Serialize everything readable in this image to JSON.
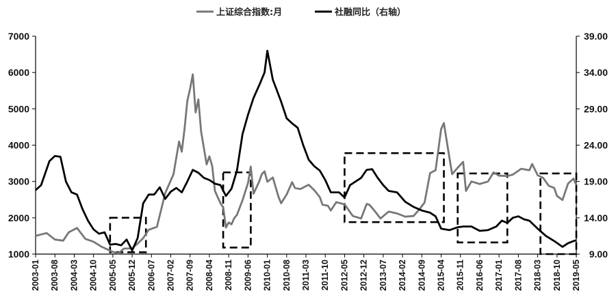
{
  "chart_data": {
    "type": "line",
    "title": "",
    "xlabel": "",
    "ylabel": "",
    "legend_position": "top-center",
    "grid": false,
    "left_axis": {
      "min": 1000,
      "max": 7000,
      "step": 1000,
      "ticks": [
        "1000",
        "2000",
        "3000",
        "4000",
        "5000",
        "6000",
        "7000"
      ]
    },
    "right_axis": {
      "min": 9,
      "max": 39,
      "step": 5,
      "ticks": [
        "9.00",
        "14.00",
        "19.00",
        "24.00",
        "29.00",
        "34.00",
        "39.00"
      ]
    },
    "x_ticks": [
      "2003-01",
      "2003-08",
      "2004-03",
      "2004-10",
      "2005-05",
      "2005-12",
      "2006-07",
      "2007-02",
      "2007-09",
      "2008-04",
      "2008-11",
      "2009-06",
      "2010-01",
      "2010-08",
      "2011-03",
      "2011-10",
      "2012-05",
      "2012-12",
      "2013-07",
      "2014-02",
      "2014-09",
      "2015-04",
      "2015-11",
      "2016-06",
      "2017-01",
      "2017-08",
      "2018-03",
      "2018-10",
      "2019-05"
    ],
    "series": [
      {
        "name": "上证综合指数:月",
        "axis": "left",
        "color": "#777777",
        "points": [
          [
            "2003-01",
            1500
          ],
          [
            "2003-05",
            1580
          ],
          [
            "2003-08",
            1400
          ],
          [
            "2003-11",
            1370
          ],
          [
            "2004-01",
            1600
          ],
          [
            "2004-04",
            1720
          ],
          [
            "2004-07",
            1420
          ],
          [
            "2004-10",
            1340
          ],
          [
            "2005-01",
            1200
          ],
          [
            "2005-05",
            1060
          ],
          [
            "2005-07",
            1020
          ],
          [
            "2005-09",
            1150
          ],
          [
            "2005-12",
            1160
          ],
          [
            "2006-02",
            1290
          ],
          [
            "2006-04",
            1440
          ],
          [
            "2006-06",
            1670
          ],
          [
            "2006-09",
            1750
          ],
          [
            "2006-12",
            2680
          ],
          [
            "2007-03",
            3200
          ],
          [
            "2007-05",
            4100
          ],
          [
            "2007-06",
            3820
          ],
          [
            "2007-07",
            4460
          ],
          [
            "2007-08",
            5220
          ],
          [
            "2007-09",
            5550
          ],
          [
            "2007-10",
            5950
          ],
          [
            "2007-11",
            4900
          ],
          [
            "2007-12",
            5260
          ],
          [
            "2008-01",
            4380
          ],
          [
            "2008-03",
            3470
          ],
          [
            "2008-04",
            3690
          ],
          [
            "2008-05",
            3430
          ],
          [
            "2008-06",
            2740
          ],
          [
            "2008-08",
            2400
          ],
          [
            "2008-09",
            2290
          ],
          [
            "2008-10",
            1730
          ],
          [
            "2008-11",
            1870
          ],
          [
            "2008-12",
            1820
          ],
          [
            "2009-01",
            1990
          ],
          [
            "2009-02",
            2080
          ],
          [
            "2009-04",
            2480
          ],
          [
            "2009-06",
            2960
          ],
          [
            "2009-07",
            3410
          ],
          [
            "2009-08",
            2660
          ],
          [
            "2009-10",
            2990
          ],
          [
            "2009-11",
            3200
          ],
          [
            "2009-12",
            3280
          ],
          [
            "2010-01",
            2990
          ],
          [
            "2010-03",
            3110
          ],
          [
            "2010-05",
            2590
          ],
          [
            "2010-06",
            2400
          ],
          [
            "2010-08",
            2640
          ],
          [
            "2010-10",
            2980
          ],
          [
            "2010-11",
            2820
          ],
          [
            "2011-01",
            2790
          ],
          [
            "2011-04",
            2910
          ],
          [
            "2011-06",
            2760
          ],
          [
            "2011-08",
            2570
          ],
          [
            "2011-09",
            2360
          ],
          [
            "2011-11",
            2330
          ],
          [
            "2011-12",
            2200
          ],
          [
            "2012-02",
            2430
          ],
          [
            "2012-05",
            2370
          ],
          [
            "2012-08",
            2050
          ],
          [
            "2012-11",
            1980
          ],
          [
            "2013-01",
            2380
          ],
          [
            "2013-02",
            2360
          ],
          [
            "2013-04",
            2180
          ],
          [
            "2013-06",
            1980
          ],
          [
            "2013-09",
            2170
          ],
          [
            "2013-12",
            2120
          ],
          [
            "2014-03",
            2030
          ],
          [
            "2014-06",
            2050
          ],
          [
            "2014-08",
            2220
          ],
          [
            "2014-10",
            2420
          ],
          [
            "2014-12",
            3230
          ],
          [
            "2015-02",
            3310
          ],
          [
            "2015-04",
            4440
          ],
          [
            "2015-05",
            4610
          ],
          [
            "2015-07",
            3660
          ],
          [
            "2015-08",
            3200
          ],
          [
            "2015-10",
            3380
          ],
          [
            "2015-12",
            3540
          ],
          [
            "2016-01",
            2740
          ],
          [
            "2016-03",
            3000
          ],
          [
            "2016-06",
            2930
          ],
          [
            "2016-09",
            3000
          ],
          [
            "2016-11",
            3250
          ],
          [
            "2017-01",
            3160
          ],
          [
            "2017-04",
            3150
          ],
          [
            "2017-06",
            3190
          ],
          [
            "2017-09",
            3350
          ],
          [
            "2017-12",
            3310
          ],
          [
            "2018-01",
            3480
          ],
          [
            "2018-03",
            3170
          ],
          [
            "2018-05",
            3100
          ],
          [
            "2018-07",
            2880
          ],
          [
            "2018-09",
            2820
          ],
          [
            "2018-10",
            2600
          ],
          [
            "2018-12",
            2490
          ],
          [
            "2019-02",
            2940
          ],
          [
            "2019-04",
            3080
          ],
          [
            "2019-05",
            2900
          ]
        ]
      },
      {
        "name": "社融同比（右轴）",
        "axis": "right",
        "color": "#000000",
        "points": [
          [
            "2003-01",
            17.8
          ],
          [
            "2003-03",
            18.5
          ],
          [
            "2003-06",
            21.8
          ],
          [
            "2003-08",
            22.5
          ],
          [
            "2003-10",
            22.4
          ],
          [
            "2003-12",
            19.0
          ],
          [
            "2004-02",
            17.5
          ],
          [
            "2004-04",
            17.2
          ],
          [
            "2004-06",
            15.2
          ],
          [
            "2004-08",
            13.6
          ],
          [
            "2004-10",
            12.4
          ],
          [
            "2004-12",
            11.8
          ],
          [
            "2005-02",
            12.0
          ],
          [
            "2005-04",
            10.3
          ],
          [
            "2005-06",
            10.4
          ],
          [
            "2005-08",
            10.2
          ],
          [
            "2005-10",
            11.0
          ],
          [
            "2005-12",
            9.5
          ],
          [
            "2006-02",
            11.2
          ],
          [
            "2006-04",
            16.0
          ],
          [
            "2006-06",
            17.2
          ],
          [
            "2006-08",
            17.2
          ],
          [
            "2006-10",
            18.2
          ],
          [
            "2006-12",
            16.6
          ],
          [
            "2007-02",
            17.6
          ],
          [
            "2007-04",
            18.1
          ],
          [
            "2007-06",
            17.5
          ],
          [
            "2007-08",
            19.0
          ],
          [
            "2007-10",
            20.6
          ],
          [
            "2007-12",
            20.2
          ],
          [
            "2008-02",
            19.5
          ],
          [
            "2008-04",
            19.2
          ],
          [
            "2008-06",
            18.7
          ],
          [
            "2008-08",
            18.5
          ],
          [
            "2008-10",
            17.0
          ],
          [
            "2008-12",
            18.0
          ],
          [
            "2009-02",
            20.5
          ],
          [
            "2009-04",
            25.5
          ],
          [
            "2009-06",
            28.2
          ],
          [
            "2009-08",
            30.5
          ],
          [
            "2009-10",
            32.2
          ],
          [
            "2009-12",
            34.0
          ],
          [
            "2010-01",
            37.0
          ],
          [
            "2010-03",
            33.0
          ],
          [
            "2010-04",
            32.0
          ],
          [
            "2010-06",
            30.0
          ],
          [
            "2010-08",
            27.7
          ],
          [
            "2010-10",
            27.0
          ],
          [
            "2010-12",
            26.4
          ],
          [
            "2011-02",
            24.0
          ],
          [
            "2011-04",
            22.0
          ],
          [
            "2011-06",
            21.1
          ],
          [
            "2011-08",
            20.5
          ],
          [
            "2011-10",
            19.2
          ],
          [
            "2011-12",
            17.5
          ],
          [
            "2012-03",
            17.5
          ],
          [
            "2012-05",
            16.8
          ],
          [
            "2012-07",
            18.5
          ],
          [
            "2012-09",
            19.0
          ],
          [
            "2012-11",
            19.5
          ],
          [
            "2013-01",
            20.6
          ],
          [
            "2013-03",
            20.7
          ],
          [
            "2013-05",
            19.5
          ],
          [
            "2013-07",
            18.5
          ],
          [
            "2013-09",
            17.7
          ],
          [
            "2013-12",
            17.5
          ],
          [
            "2014-03",
            16.2
          ],
          [
            "2014-06",
            15.5
          ],
          [
            "2014-09",
            15.0
          ],
          [
            "2014-12",
            14.7
          ],
          [
            "2015-02",
            14.2
          ],
          [
            "2015-04",
            12.5
          ],
          [
            "2015-07",
            12.3
          ],
          [
            "2015-10",
            12.7
          ],
          [
            "2015-12",
            12.8
          ],
          [
            "2016-03",
            12.8
          ],
          [
            "2016-06",
            12.2
          ],
          [
            "2016-09",
            12.3
          ],
          [
            "2016-12",
            12.8
          ],
          [
            "2017-02",
            13.6
          ],
          [
            "2017-04",
            13.3
          ],
          [
            "2017-06",
            14.0
          ],
          [
            "2017-08",
            14.2
          ],
          [
            "2017-10",
            13.8
          ],
          [
            "2017-12",
            13.6
          ],
          [
            "2018-03",
            12.5
          ],
          [
            "2018-06",
            11.5
          ],
          [
            "2018-09",
            10.8
          ],
          [
            "2018-12",
            10.0
          ],
          [
            "2019-02",
            10.5
          ],
          [
            "2019-04",
            10.8
          ],
          [
            "2019-05",
            10.9
          ]
        ]
      }
    ],
    "boxes": [
      {
        "x0": "2005-04",
        "x1": "2006-05",
        "y0": 1050,
        "y1": 2000
      },
      {
        "x0": "2008-09",
        "x1": "2009-07",
        "y0": 1180,
        "y1": 3250
      },
      {
        "x0": "2012-05",
        "x1": "2015-05",
        "y0": 1880,
        "y1": 3780
      },
      {
        "x0": "2015-10",
        "x1": "2017-04",
        "y0": 1320,
        "y1": 3220
      },
      {
        "x0": "2018-04",
        "x1": "2019-05",
        "y0": 1000,
        "y1": 3220
      }
    ]
  }
}
